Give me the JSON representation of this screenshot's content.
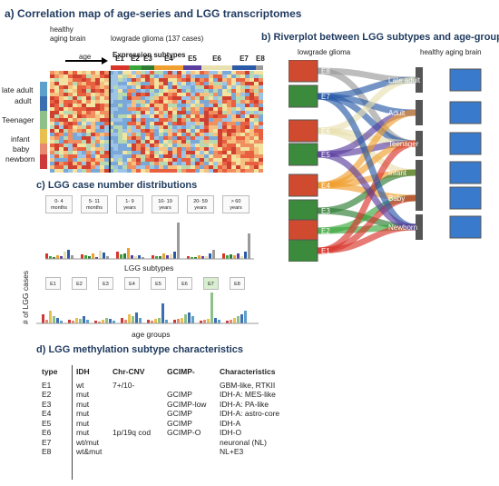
{
  "panel_a": {
    "title": "a) Correlation map of age-series and LGG transcriptomes",
    "healthy_label_1": "healthy",
    "healthy_label_2": "aging brain",
    "lgg_label": "lowgrade glioma (137 cases)",
    "age_arrow_label": "age",
    "expression_subtypes_label": "Expression subtypes",
    "subtypes": [
      "E1",
      "E2",
      "E3",
      "E4",
      "E5",
      "E6",
      "E7",
      "E8"
    ],
    "age_groups": [
      "late adult",
      "adult",
      "Teenager",
      "infant",
      "baby",
      "newborn"
    ]
  },
  "panel_b": {
    "title": "b) Riverplot between LGG subtypes and age-groups",
    "left_header": "lowgrade glioma",
    "right_header": "healthy aging brain",
    "left_nodes": [
      "E8",
      "E7",
      "E6",
      "E5",
      "E4",
      "E3",
      "E2",
      "E1"
    ],
    "right_nodes": [
      "Late adult",
      "Adult",
      "Teenager",
      "Infant",
      "Baby",
      "Newborn"
    ]
  },
  "panel_c": {
    "title": "c) LGG case number distributions",
    "y_axis_label": "# of LGG cases",
    "top_x_label": "LGG subtypes",
    "bottom_x_label": "age groups",
    "age_boxes": [
      {
        "l1": "0- 4",
        "l2": "months"
      },
      {
        "l1": "5- 11",
        "l2": "months"
      },
      {
        "l1": "1- 9",
        "l2": "years"
      },
      {
        "l1": "10- 19",
        "l2": "years"
      },
      {
        "l1": "20- 59",
        "l2": "years"
      },
      {
        "l1": "> 60",
        "l2": "years"
      }
    ],
    "subtype_boxes": [
      "E1",
      "E2",
      "E3",
      "E4",
      "E5",
      "E6",
      "E7",
      "E8"
    ]
  },
  "panel_d": {
    "title": "d) LGG methylation subtype characteristics",
    "headers": [
      "type",
      "IDH",
      "Chr-CNV",
      "GCIMP-",
      "Characteristics"
    ],
    "rows": [
      [
        "E1",
        "wt",
        "7+/10-",
        "",
        "GBM-like, RTKII"
      ],
      [
        "E2",
        "mut",
        "",
        "GCIMP",
        "IDH-A: MES-like"
      ],
      [
        "E3",
        "mut",
        "",
        "GCIMP-low",
        "IDH-A: PA-like"
      ],
      [
        "E4",
        "mut",
        "",
        "GCIMP",
        "IDH-A: astro-core"
      ],
      [
        "E5",
        "mut",
        "",
        "GCIMP",
        "IDH-A"
      ],
      [
        "E6",
        "mut",
        "1p/19q cod",
        "GCIMP-O",
        "IDH-O"
      ],
      [
        "E7",
        "wt/mut",
        "",
        "",
        "neuronal (NL)"
      ],
      [
        "E8",
        "wt&mut",
        "",
        "",
        "NL+E3"
      ]
    ]
  },
  "colors": {
    "title_blue": "#1f3a5f",
    "subtype_colors": [
      "#d9342b",
      "#3aa63a",
      "#2e7d32",
      "#f0a030",
      "#5b3fa0",
      "#e8e0b0",
      "#2a5aa8",
      "#9a9a9a"
    ]
  }
}
